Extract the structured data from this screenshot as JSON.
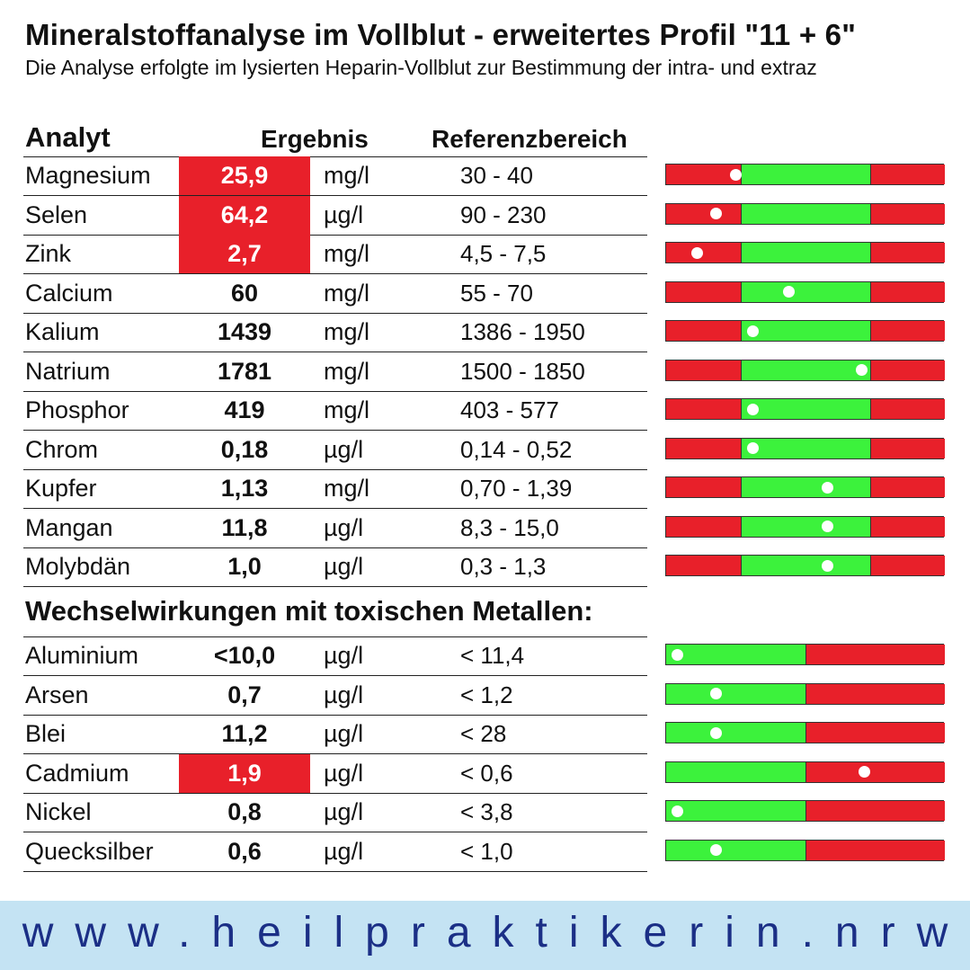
{
  "title": "Mineralstoffanalyse im Vollblut - erweitertes Profil \"11 + 6\"",
  "subtitle": "Die Analyse erfolgte im lysierten Heparin-Vollblut zur Bestimmung der intra- und extraz",
  "headers": {
    "analyt": "Analyt",
    "ergebnis": "Ergebnis",
    "referenz": "Referenzbereich"
  },
  "section2_title": "Wechselwirkungen mit toxischen Metallen:",
  "colors": {
    "high_low": "#e8202a",
    "normal": "#3cf23c",
    "footer_bg": "#c4e3f3",
    "footer_text": "#1b2f86"
  },
  "minerals": [
    {
      "name": "Magnesium",
      "value": "25,9",
      "unit": "mg/l",
      "ref": "30 - 40",
      "flag": "out",
      "marker": 0.25
    },
    {
      "name": "Selen",
      "value": "64,2",
      "unit": "µg/l",
      "ref": "90 - 230",
      "flag": "out",
      "marker": 0.18
    },
    {
      "name": "Zink",
      "value": "2,7",
      "unit": "mg/l",
      "ref": "4,5 - 7,5",
      "flag": "out",
      "marker": 0.11
    },
    {
      "name": "Calcium",
      "value": "60",
      "unit": "mg/l",
      "ref": "55 - 70",
      "flag": "ok",
      "marker": 0.44
    },
    {
      "name": "Kalium",
      "value": "1439",
      "unit": "mg/l",
      "ref": "1386 - 1950",
      "flag": "ok",
      "marker": 0.31
    },
    {
      "name": "Natrium",
      "value": "1781",
      "unit": "mg/l",
      "ref": "1500 - 1850",
      "flag": "ok",
      "marker": 0.7
    },
    {
      "name": "Phosphor",
      "value": "419",
      "unit": "mg/l",
      "ref": "403 - 577",
      "flag": "ok",
      "marker": 0.31
    },
    {
      "name": "Chrom",
      "value": "0,18",
      "unit": "µg/l",
      "ref": "0,14 - 0,52",
      "flag": "ok",
      "marker": 0.31
    },
    {
      "name": "Kupfer",
      "value": "1,13",
      "unit": "mg/l",
      "ref": "0,70 - 1,39",
      "flag": "ok",
      "marker": 0.58
    },
    {
      "name": "Mangan",
      "value": "11,8",
      "unit": "µg/l",
      "ref": "8,3 - 15,0",
      "flag": "ok",
      "marker": 0.58
    },
    {
      "name": "Molybdän",
      "value": "1,0",
      "unit": "µg/l",
      "ref": "0,3 - 1,3",
      "flag": "ok",
      "marker": 0.58
    }
  ],
  "toxics": [
    {
      "name": "Aluminium",
      "value": "<10,0",
      "unit": "µg/l",
      "ref": "< 11,4",
      "flag": "ok",
      "marker": 0.04
    },
    {
      "name": "Arsen",
      "value": "0,7",
      "unit": "µg/l",
      "ref": "< 1,2",
      "flag": "ok",
      "marker": 0.18
    },
    {
      "name": "Blei",
      "value": "11,2",
      "unit": "µg/l",
      "ref": "< 28",
      "flag": "ok",
      "marker": 0.18
    },
    {
      "name": "Cadmium",
      "value": "1,9",
      "unit": "µg/l",
      "ref": "< 0,6",
      "flag": "out",
      "marker": 0.71
    },
    {
      "name": "Nickel",
      "value": "0,8",
      "unit": "µg/l",
      "ref": "< 3,8",
      "flag": "ok",
      "marker": 0.04
    },
    {
      "name": "Quecksilber",
      "value": "0,6",
      "unit": "µg/l",
      "ref": "< 1,0",
      "flag": "ok",
      "marker": 0.18
    }
  ],
  "footer": "www.heilpraktikerin.nrw"
}
